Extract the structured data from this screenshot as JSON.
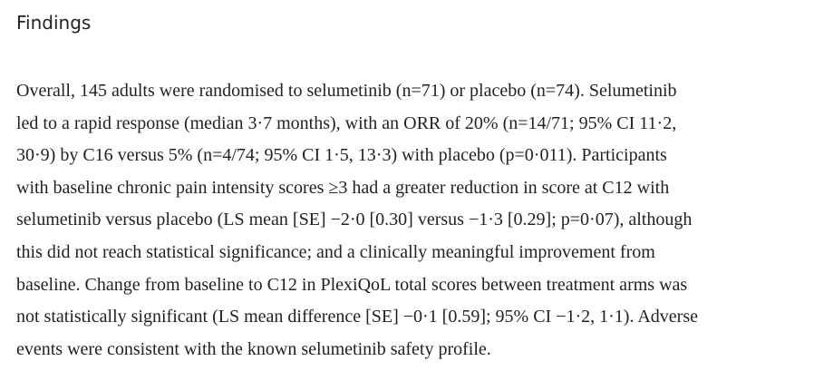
{
  "heading": "Findings",
  "paragraph": {
    "lines": [
      "Overall, 145 adults were randomised to selumetinib (n=71) or placebo (n=74). Selumetinib",
      "led to a rapid response (median 3·7 months), with an ORR of 20% (n=14/71; 95% CI 11·2,",
      "30·9) by C16 versus 5% (n=4/74; 95% CI 1·5, 13·3) with placebo (p=0·011). Participants",
      "with baseline chronic pain intensity scores ≥3 had a greater reduction in score at C12 with",
      "selumetinib versus placebo (LS mean [SE] −2·0 [0.30] versus −1·3 [0.29]; p=0·07), although",
      "this did not reach statistical significance; and a clinically meaningful improvement from",
      "baseline. Change from baseline to C12 in PlexiQoL total scores between treatment arms was",
      "not statistically significant (LS mean difference [SE] −0·1 [0.59]; 95% CI −1·2, 1·1). Adverse",
      "events were consistent with the known selumetinib safety profile."
    ]
  }
}
